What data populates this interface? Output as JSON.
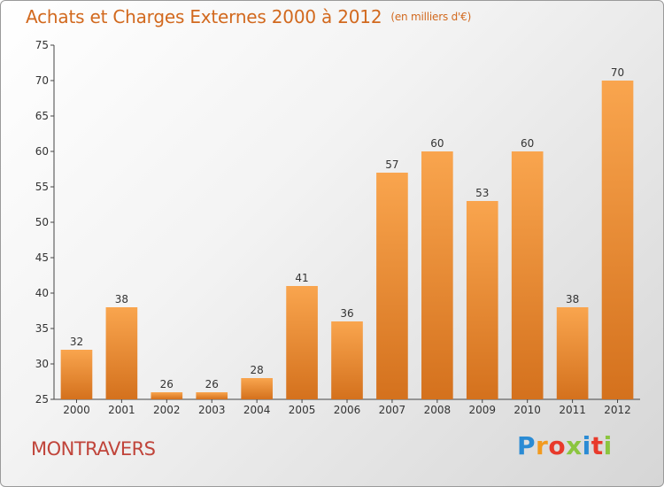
{
  "header": {
    "title": "Achats et Charges Externes 2000 à 2012",
    "unit": "(en milliers d'€)"
  },
  "footer": {
    "city": "MONTRAVERS",
    "logo_letters": [
      "P",
      "r",
      "o",
      "x",
      "i",
      "t",
      "i"
    ]
  },
  "colors": {
    "bar_light": "#f9a54e",
    "bar_dark": "#d4711d",
    "title": "#d2691e",
    "city": "#c0443a"
  },
  "chart_data": {
    "type": "bar",
    "categories": [
      "2000",
      "2001",
      "2002",
      "2003",
      "2004",
      "2005",
      "2006",
      "2007",
      "2008",
      "2009",
      "2010",
      "2011",
      "2012"
    ],
    "values": [
      32,
      38,
      26,
      26,
      28,
      41,
      36,
      57,
      60,
      53,
      60,
      38,
      70
    ],
    "title": "Achats et Charges Externes 2000 à 2012",
    "ylim": [
      25,
      75
    ],
    "yticks": [
      25,
      30,
      35,
      40,
      45,
      50,
      55,
      60,
      65,
      70,
      75
    ],
    "grid": false,
    "data_labels": true
  }
}
